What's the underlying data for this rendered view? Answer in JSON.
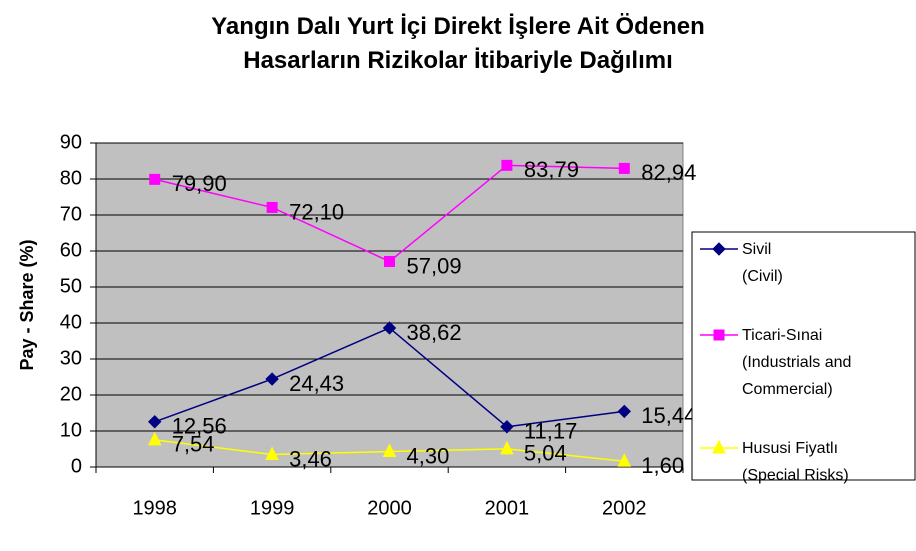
{
  "chart_data": {
    "type": "line",
    "title": "Yangın Dalı Yurt İçi  Direkt İşlere Ait Ödenen\nHasarların Rizikolar İtibariyle Dağılımı",
    "y_label": "Pay - Share (%)",
    "categories": [
      "1998",
      "1999",
      "2000",
      "2001",
      "2002"
    ],
    "series": [
      {
        "name": "Sivil\n(Civil)",
        "color": "#000080",
        "marker": "diamond",
        "values": [
          12.56,
          24.43,
          38.62,
          11.17,
          15.44
        ],
        "value_labels": [
          "12,56",
          "24,43",
          "38,62",
          "11,17",
          "15,44"
        ]
      },
      {
        "name": "Ticari-Sınai\n(Industrials and\nCommercial)",
        "color": "#ff00ff",
        "marker": "square",
        "values": [
          79.9,
          72.1,
          57.09,
          83.79,
          82.94
        ],
        "value_labels": [
          "79,90",
          "72,10",
          "57,09",
          "83,79",
          "82,94"
        ]
      },
      {
        "name": "Hususi Fiyatlı\n(Special Risks)",
        "color": "#ffff00",
        "marker": "triangle",
        "values": [
          7.54,
          3.46,
          4.3,
          5.04,
          1.6
        ],
        "value_labels": [
          "7,54",
          "3,46",
          "4,30",
          "5,04",
          "1,60"
        ]
      }
    ],
    "ylim": [
      0,
      90
    ],
    "yticks": [
      0,
      10,
      20,
      30,
      40,
      50,
      60,
      70,
      80,
      90
    ],
    "grid": true,
    "legend": "right",
    "plot_background": "#c0c0c0"
  }
}
